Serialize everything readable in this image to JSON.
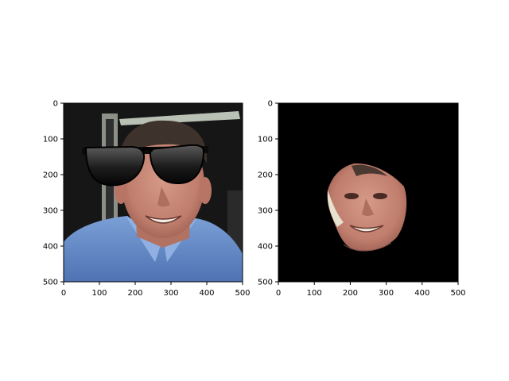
{
  "chart_data": [
    {
      "type": "image",
      "title": "",
      "xlabel": "",
      "ylabel": "",
      "xlim": [
        0,
        500
      ],
      "ylim": [
        500,
        0
      ],
      "xticks": [
        0,
        100,
        200,
        300,
        400,
        500
      ],
      "yticks": [
        0,
        100,
        200,
        300,
        400,
        500
      ],
      "xtick_labels": [
        "0",
        "100",
        "200",
        "300",
        "400",
        "500"
      ],
      "ytick_labels": [
        "0",
        "100",
        "200",
        "300",
        "400",
        "500"
      ],
      "image_content": "photo-with-sunglasses-overlay",
      "grid": false
    },
    {
      "type": "image",
      "title": "",
      "xlabel": "",
      "ylabel": "",
      "xlim": [
        0,
        500
      ],
      "ylim": [
        500,
        0
      ],
      "xticks": [
        0,
        100,
        200,
        300,
        400,
        500
      ],
      "yticks": [
        0,
        100,
        200,
        300,
        400,
        500
      ],
      "xtick_labels": [
        "0",
        "100",
        "200",
        "300",
        "400",
        "500"
      ],
      "ytick_labels": [
        "0",
        "100",
        "200",
        "300",
        "400",
        "500"
      ],
      "image_content": "masked-face-on-black",
      "grid": false
    }
  ],
  "colors": {
    "shirt": "#6b8fc8",
    "skin": "#c98a7a",
    "hair": "#4a3b34",
    "background_dark": "#121212",
    "mask_black": "#000000"
  }
}
